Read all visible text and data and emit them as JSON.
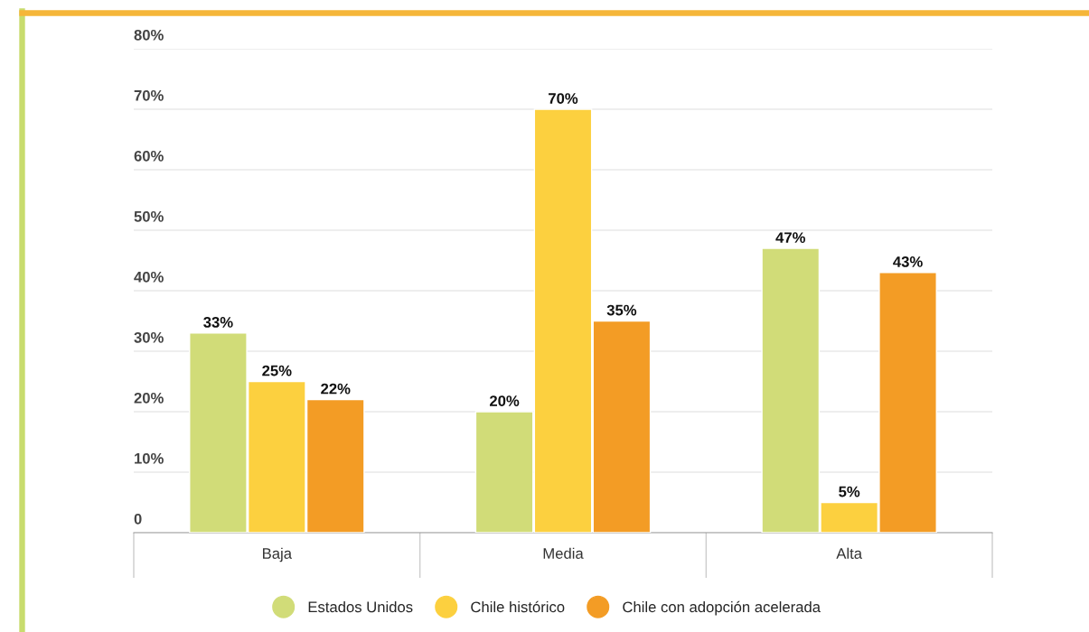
{
  "chart_data": {
    "type": "bar",
    "categories": [
      "Baja",
      "Media",
      "Alta"
    ],
    "series": [
      {
        "name": "Estados Unidos",
        "color": "#d1dc78",
        "values": [
          33,
          20,
          47
        ],
        "value_labels": [
          "33%",
          "20%",
          "47%"
        ]
      },
      {
        "name": "Chile histórico",
        "color": "#fcd03f",
        "values": [
          25,
          70,
          5
        ],
        "value_labels": [
          "25%",
          "70%",
          "5%"
        ]
      },
      {
        "name": "Chile con adopción acelerada",
        "color": "#f39c25",
        "values": [
          22,
          35,
          43
        ],
        "value_labels": [
          "22%",
          "35%",
          "43%"
        ]
      }
    ],
    "ylim": [
      0,
      80
    ],
    "yticks": [
      {
        "value": 0,
        "label": "0"
      },
      {
        "value": 10,
        "label": "10%"
      },
      {
        "value": 20,
        "label": "20%"
      },
      {
        "value": 30,
        "label": "30%"
      },
      {
        "value": 40,
        "label": "40%"
      },
      {
        "value": 50,
        "label": "50%"
      },
      {
        "value": 60,
        "label": "60%"
      },
      {
        "value": 70,
        "label": "70%"
      },
      {
        "value": 80,
        "label": "80%"
      }
    ],
    "grid": "y",
    "legend": "bottom",
    "marker": "circle"
  }
}
